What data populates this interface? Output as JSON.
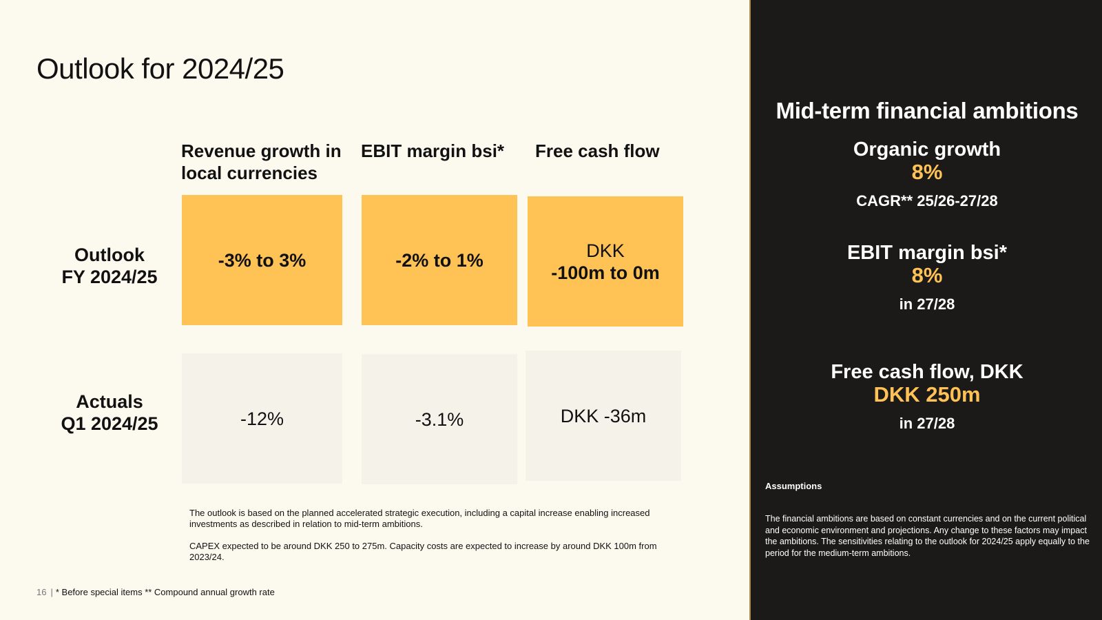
{
  "title": "Outlook for 2024/25",
  "columns": [
    "Revenue growth in local currencies",
    "EBIT margin bsi*",
    "Free cash flow"
  ],
  "rows": {
    "outlook": {
      "label_line1": "Outlook",
      "label_line2": "FY 2024/25",
      "revenue": "-3% to 3%",
      "ebit": "-2% to 1%",
      "fcf_line1": "DKK",
      "fcf_line2": "-100m to 0m"
    },
    "actuals": {
      "label_line1": "Actuals",
      "label_line2": "Q1  2024/25",
      "revenue": "-12%",
      "ebit": "-3.1%",
      "fcf": "DKK -36m"
    }
  },
  "notes": [
    "The outlook is based on the planned accelerated strategic execution, including a capital increase enabling increased investments as described in  relation to mid-term ambitions.",
    "CAPEX expected to be around DKK 250 to 275m. Capacity costs are expected to increase by around DKK 100m from 2023/24."
  ],
  "footer": {
    "page": "16",
    "text": "* Before special items ** Compound annual growth rate"
  },
  "panel": {
    "title": "Mid-term financial ambitions",
    "ambitions": [
      {
        "label": "Organic growth",
        "value": "8%",
        "sub": "CAGR** 25/26-27/28"
      },
      {
        "label": "EBIT margin bsi*",
        "value": "8%",
        "sub": "in 27/28"
      },
      {
        "label": "Free cash flow, DKK",
        "value": "DKK 250m",
        "sub": "in 27/28"
      }
    ],
    "assumptions_title": "Assumptions",
    "assumptions_text": "The financial ambitions are based on constant currencies and on the current political and economic environment and projections. Any change to these factors may impact the ambitions. The sensitivities relating to the outlook for 2024/25 apply equally to the period for the medium-term ambitions."
  },
  "colors": {
    "background": "#fcf9ef",
    "outlook_fill": "#ffc255",
    "actual_fill": "#f5f2ea",
    "panel_bg": "#1c1a19",
    "accent": "#ffc255"
  }
}
